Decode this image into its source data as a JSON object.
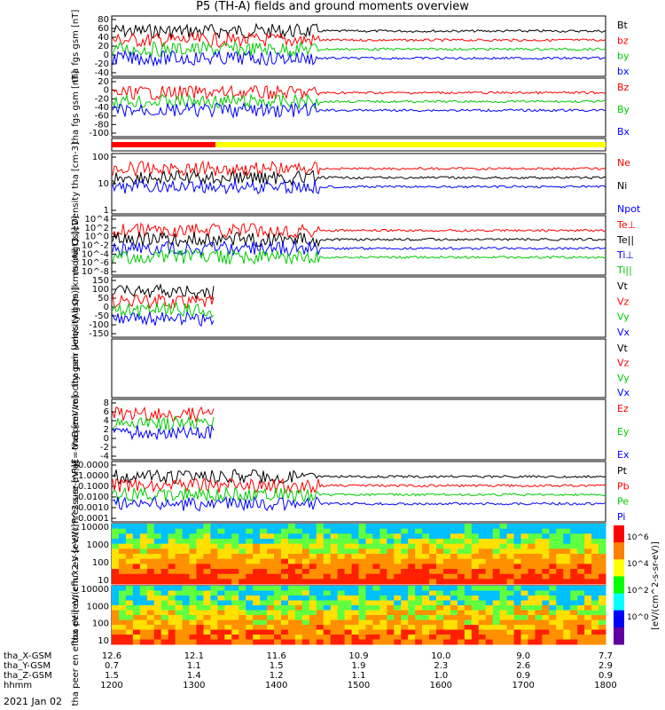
{
  "title": "P5 (TH-A) fields and ground moments overview",
  "colors": {
    "black": "#000000",
    "red": "#ff0000",
    "green": "#00cc00",
    "blue": "#0000ff",
    "yellow": "#ffff00"
  },
  "time_axis": {
    "tick_rows": [
      {
        "name": "tha_X-GSM",
        "values": [
          "12.6",
          "12.1",
          "11.6",
          "10.9",
          "10.0",
          "9.0",
          "7.7"
        ]
      },
      {
        "name": "tha_Y-GSM",
        "values": [
          "0.7",
          "1.1",
          "1.5",
          "1.9",
          "2.3",
          "2.6",
          "2.9"
        ]
      },
      {
        "name": "tha_Z-GSM",
        "values": [
          "1.5",
          "1.4",
          "1.2",
          "1.1",
          "1.0",
          "0.9",
          "0.9"
        ]
      },
      {
        "name": "hhmm",
        "values": [
          "1200",
          "1300",
          "1400",
          "1500",
          "1600",
          "1700",
          "1800"
        ]
      }
    ],
    "date": "2021 Jan 02"
  },
  "colorbar_label": "[eV/(cm^2-s-sr-eV)]",
  "colorbar_ticks": [
    "10^6",
    "10^4",
    "10^2",
    "10^0"
  ],
  "chart_data": [
    {
      "type": "line",
      "ylabel": "tha fgs gsm [nT]",
      "yticks": [
        "80",
        "60",
        "40",
        "20",
        "0",
        "-20",
        "-40"
      ],
      "ylim": [
        -40,
        80
      ],
      "series": [
        {
          "name": "Bt",
          "color": "#000000",
          "level": 40
        },
        {
          "name": "bz",
          "color": "#ff0000",
          "level": 25
        },
        {
          "name": "by",
          "color": "#00cc00",
          "level": 5
        },
        {
          "name": "bx",
          "color": "#0000ff",
          "level": 0
        }
      ]
    },
    {
      "type": "line",
      "ylabel": "tha fgs gsm [nT]",
      "yticks": [
        "20",
        "0",
        "-20",
        "-40",
        "-60",
        "-80",
        "-100"
      ],
      "ylim": [
        -100,
        20
      ],
      "series": [
        {
          "name": "Bz",
          "color": "#ff0000",
          "level": -20
        },
        {
          "name": "By",
          "color": "#00cc00",
          "level": 0
        },
        {
          "name": "Bx",
          "color": "#0000ff",
          "level": 10
        }
      ]
    },
    {
      "type": "bar",
      "ylabel": "",
      "yticks": [],
      "series": []
    },
    {
      "type": "line",
      "ylabel": "Density tha [cm-3]",
      "yticks": [
        "100",
        "10",
        "1"
      ],
      "ylim": [
        0.1,
        100
      ],
      "series": [
        {
          "name": "Ne",
          "color": "#ff0000"
        },
        {
          "name": "Ni",
          "color": "#000000"
        },
        {
          "name": "Npot",
          "color": "#0000ff"
        }
      ]
    },
    {
      "type": "line",
      "ylabel": "momgt3 [eV]",
      "yticks": [
        "10^4",
        "10^2",
        "10^0",
        "10^-2",
        "10^-4",
        "10^-6",
        "10^-8"
      ],
      "ylim": [
        1e-08,
        10000.0
      ],
      "series": [
        {
          "name": "Te⊥",
          "color": "#ff0000"
        },
        {
          "name": "Te||",
          "color": "#000000"
        },
        {
          "name": "Ti⊥",
          "color": "#0000ff"
        },
        {
          "name": "Ti||",
          "color": "#00cc00"
        }
      ]
    },
    {
      "type": "line",
      "ylabel": "tha peir velocity gsm [km/s (All Qs)]",
      "yticks": [
        "150",
        "100",
        "50",
        "0",
        "-50",
        "-100",
        "-150"
      ],
      "ylim": [
        -150,
        150
      ],
      "series": [
        {
          "name": "Vt",
          "color": "#000000"
        },
        {
          "name": "Vz",
          "color": "#ff0000"
        },
        {
          "name": "Vy",
          "color": "#00cc00"
        },
        {
          "name": "Vx",
          "color": "#0000ff"
        }
      ]
    },
    {
      "type": "line",
      "ylabel": "tha peer velocity gsm [km/s (All Qs)]",
      "yticks": [],
      "series": [
        {
          "name": "Vt",
          "color": "#000000"
        },
        {
          "name": "Vz",
          "color": "#ff0000"
        },
        {
          "name": "Vy",
          "color": "#00cc00"
        },
        {
          "name": "Vx",
          "color": "#0000ff"
        }
      ]
    },
    {
      "type": "line",
      "ylabel": "E=-VxB [mV/m]",
      "yticks": [
        "8",
        "6",
        "4",
        "2",
        "0",
        "-2",
        "-4"
      ],
      "ylim": [
        -4,
        8
      ],
      "series": [
        {
          "name": "Ez",
          "color": "#ff0000"
        },
        {
          "name": "Ey",
          "color": "#00cc00"
        },
        {
          "name": "Ex",
          "color": "#0000ff"
        }
      ]
    },
    {
      "type": "line",
      "ylabel": "Pressure [nPa]",
      "yticks": [
        "10.0000",
        "1.0000",
        "0.1000",
        "0.0100",
        "0.0010",
        "0.0001"
      ],
      "ylim": [
        0.0001,
        10
      ],
      "series": [
        {
          "name": "Pt",
          "color": "#000000"
        },
        {
          "name": "Pb",
          "color": "#ff0000"
        },
        {
          "name": "Pe",
          "color": "#00cc00"
        },
        {
          "name": "Pi",
          "color": "#0000ff"
        }
      ]
    },
    {
      "type": "heatmap",
      "ylabel": "tha peir en eflux eV [eV/(cm^2-s-sr-eV)]",
      "yticks": [
        "10000",
        "1000",
        "100",
        "10"
      ],
      "series": []
    },
    {
      "type": "heatmap",
      "ylabel": "tha peer en eflux eV [eV/(cm^2-s-sr-eV)]",
      "yticks": [
        "10000",
        "1000",
        "100",
        "10"
      ],
      "series": []
    }
  ]
}
